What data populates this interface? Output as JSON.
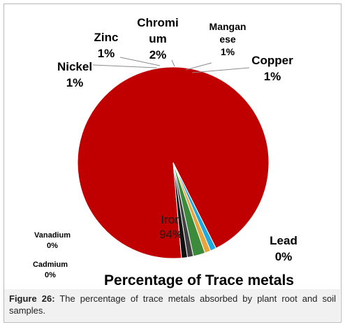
{
  "chart_data": {
    "type": "pie",
    "title": "Percentage of Trace metals",
    "slices": [
      {
        "label_lines": [
          "Iron",
          "94%"
        ],
        "value": 94,
        "color": "#c00000"
      },
      {
        "label_lines": [
          "Nickel",
          "1%"
        ],
        "value": 1,
        "color": "#1fa9e1"
      },
      {
        "label_lines": [
          "Zinc",
          "1%"
        ],
        "value": 1,
        "color": "#e8a53a"
      },
      {
        "label_lines": [
          "Chromi",
          "um",
          "2%"
        ],
        "value": 2,
        "color": "#3c8a3c"
      },
      {
        "label_lines": [
          "Mangan",
          "ese",
          "1%"
        ],
        "value": 1,
        "color": "#404040"
      },
      {
        "label_lines": [
          "Copper",
          "1%"
        ],
        "value": 1,
        "color": "#111111"
      },
      {
        "label_lines": [
          "Lead",
          "0%"
        ],
        "value": 0,
        "color": "#7f7f7f"
      },
      {
        "label_lines": [
          "Vanadium",
          "0%"
        ],
        "value": 0,
        "color": "#9f3a3a"
      },
      {
        "label_lines": [
          "Cadmium",
          "0%"
        ],
        "value": 0,
        "color": "#5a7fbf"
      }
    ]
  },
  "caption": {
    "label": "Figure 26:",
    "text": " The percentage of trace metals absorbed by plant root and soil samples."
  }
}
